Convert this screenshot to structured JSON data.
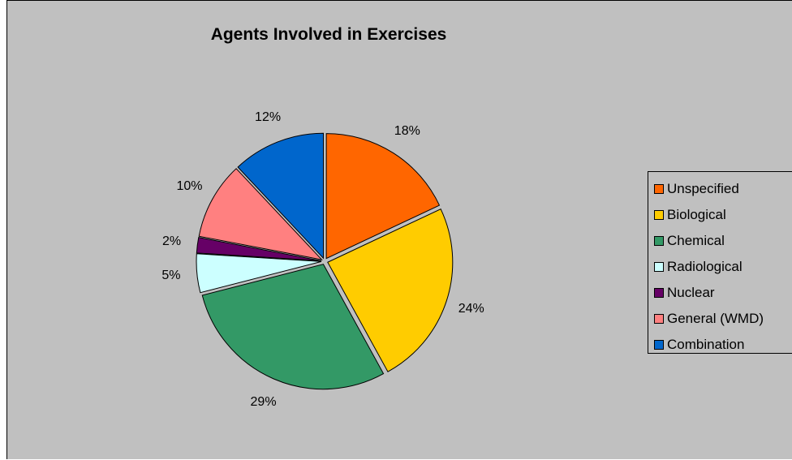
{
  "chart_data": {
    "type": "pie",
    "title": "Agents Involved in Exercises",
    "categories": [
      "Unspecified",
      "Biological",
      "Chemical",
      "Radiological",
      "Nuclear",
      "General (WMD)",
      "Combination"
    ],
    "values": [
      18,
      24,
      29,
      5,
      2,
      10,
      12
    ],
    "value_labels": [
      "18%",
      "24%",
      "29%",
      "5%",
      "2%",
      "10%",
      "12%"
    ],
    "colors": [
      "#ff6600",
      "#ffcc00",
      "#339966",
      "#ccffff",
      "#660066",
      "#ff8080",
      "#0066cc"
    ],
    "legend_position": "right",
    "background_color": "#c0c0c0"
  }
}
